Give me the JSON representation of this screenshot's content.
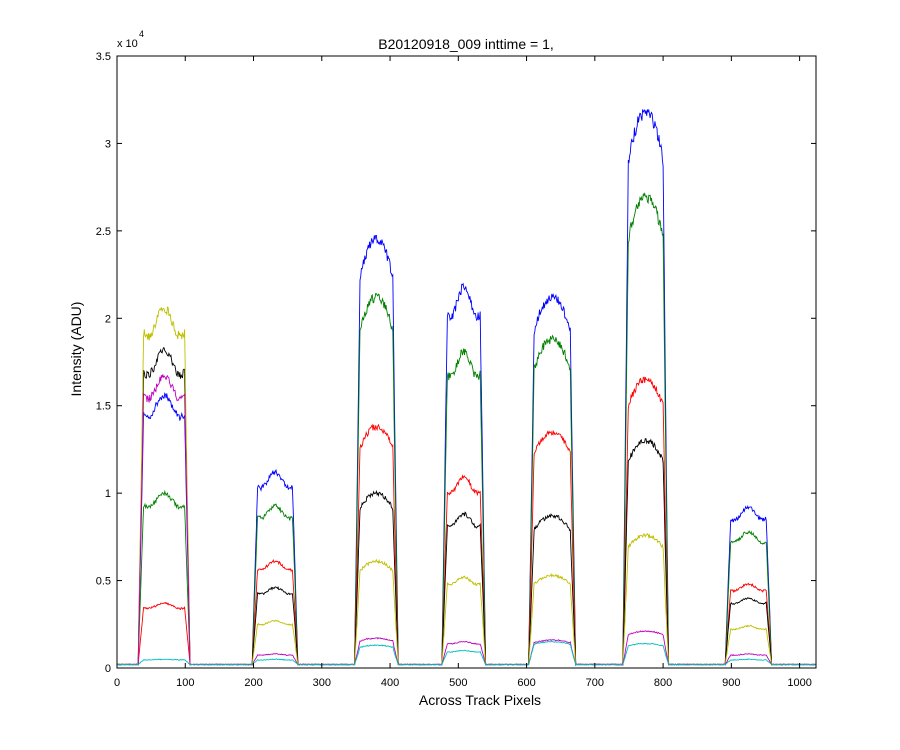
{
  "chart_data": {
    "type": "line",
    "title": "B20120918_009 inttime = 1,",
    "xlabel": "Across Track Pixels",
    "ylabel": "Intensity (ADU)",
    "y_exponent_label": "x 10",
    "y_exponent": "4",
    "xlim": [
      0,
      1024
    ],
    "ylim": [
      0,
      3.5
    ],
    "y_scale_factor": 10000,
    "x_ticks": [
      0,
      100,
      200,
      300,
      400,
      500,
      600,
      700,
      800,
      900,
      1000
    ],
    "y_ticks": [
      0,
      0.5,
      1,
      1.5,
      2,
      2.5,
      3,
      3.5
    ],
    "y_tick_labels": [
      "0",
      "0.5",
      "1",
      "1.5",
      "2",
      "2.5",
      "3",
      "3.5"
    ],
    "grid": false,
    "baseline": 0.02,
    "bumps": [
      {
        "x_start": 33,
        "x_end": 105,
        "shape": "flat"
      },
      {
        "x_start": 200,
        "x_end": 263,
        "shape": "flat"
      },
      {
        "x_start": 350,
        "x_end": 410,
        "shape": "peak"
      },
      {
        "x_start": 478,
        "x_end": 538,
        "shape": "flat"
      },
      {
        "x_start": 605,
        "x_end": 670,
        "shape": "peak"
      },
      {
        "x_start": 743,
        "x_end": 806,
        "shape": "peak"
      },
      {
        "x_start": 893,
        "x_end": 957,
        "shape": "flat"
      }
    ],
    "series": [
      {
        "color": "#0000ff",
        "values": [
          1.56,
          1.12,
          2.45,
          2.18,
          2.12,
          3.18,
          0.92
        ]
      },
      {
        "color": "#008000",
        "values": [
          1.0,
          0.93,
          2.12,
          1.81,
          1.88,
          2.7,
          0.78
        ]
      },
      {
        "color": "#ff0000",
        "values": [
          0.37,
          0.61,
          1.38,
          1.09,
          1.35,
          1.65,
          0.48
        ]
      },
      {
        "color": "#000000",
        "values": [
          1.82,
          0.46,
          1.0,
          0.88,
          0.87,
          1.3,
          0.4
        ]
      },
      {
        "color": "#bfbf00",
        "values": [
          2.06,
          0.27,
          0.61,
          0.52,
          0.53,
          0.76,
          0.24
        ]
      },
      {
        "color": "#bf00bf",
        "values": [
          1.67,
          0.08,
          0.17,
          0.15,
          0.16,
          0.21,
          0.08
        ]
      },
      {
        "color": "#00bfbf",
        "values": [
          0.05,
          0.05,
          0.13,
          0.1,
          0.15,
          0.14,
          0.05
        ]
      }
    ]
  }
}
